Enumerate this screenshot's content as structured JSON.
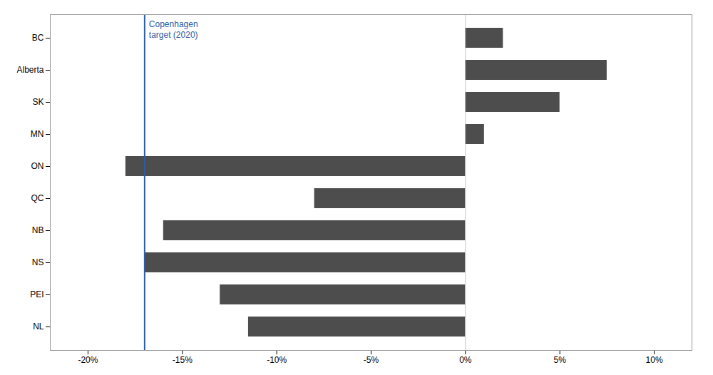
{
  "chart_data": {
    "type": "bar",
    "orientation": "horizontal",
    "categories": [
      "BC",
      "Alberta",
      "SK",
      "MN",
      "ON",
      "QC",
      "NB",
      "NS",
      "PEI",
      "NL"
    ],
    "values": [
      2.0,
      7.5,
      5.0,
      1.0,
      -18.0,
      -8.0,
      -16.0,
      -17.0,
      -13.0,
      -11.5
    ],
    "color": "#4d4d4d",
    "xlim": [
      -22,
      12
    ],
    "xticks": [
      {
        "value": -20,
        "label": "-20%"
      },
      {
        "value": -15,
        "label": "-15%"
      },
      {
        "value": -10,
        "label": "-10%"
      },
      {
        "value": -5,
        "label": "-5%"
      },
      {
        "value": 0,
        "label": "0%"
      },
      {
        "value": 5,
        "label": "5%"
      },
      {
        "value": 10,
        "label": "10%"
      }
    ],
    "grid": false,
    "reference_line": {
      "x": -17.0,
      "label": "Copenhagen\ntarget (2020)",
      "color": "#2a5ca8"
    }
  }
}
